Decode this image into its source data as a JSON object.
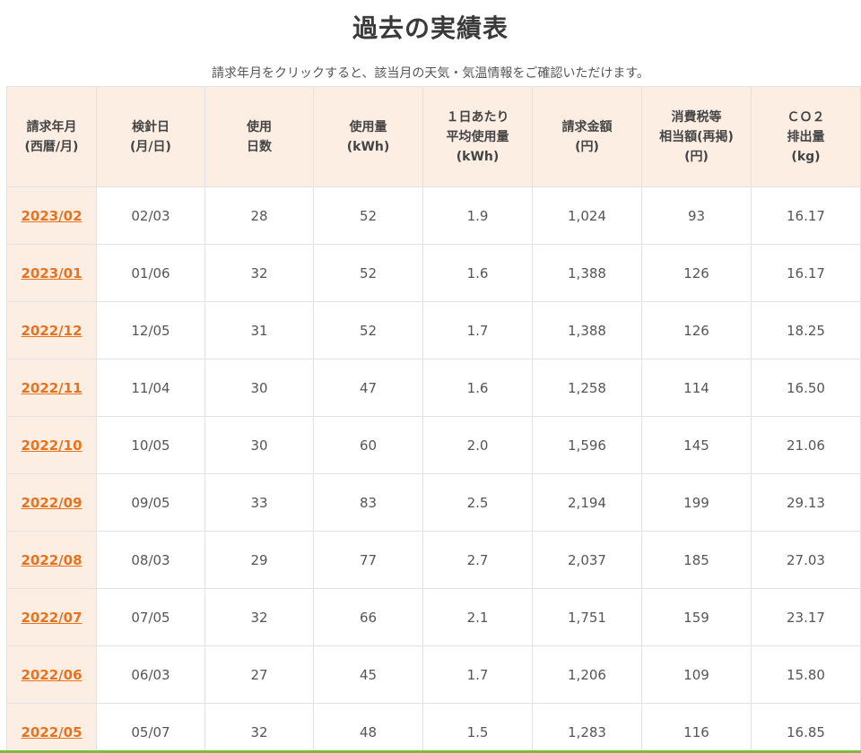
{
  "page": {
    "title": "過去の実績表",
    "subtitle": "請求年月をクリックすると、該当月の天気・気温情報をご確認いただけます。"
  },
  "table": {
    "headers": [
      {
        "lines": [
          "請求年月",
          "(西暦/月)"
        ]
      },
      {
        "lines": [
          "検針日",
          "(月/日)"
        ]
      },
      {
        "lines": [
          "使用",
          "日数"
        ]
      },
      {
        "lines": [
          "使用量",
          "(kWh)"
        ]
      },
      {
        "lines": [
          "１日あたり",
          "平均使用量",
          "(kWh)"
        ]
      },
      {
        "lines": [
          "請求金額",
          "(円)"
        ]
      },
      {
        "lines": [
          "消費税等",
          "相当額(再掲)",
          "(円)"
        ]
      },
      {
        "lines": [
          "ＣＯ２",
          "排出量",
          "(kg)"
        ]
      }
    ],
    "rows": [
      {
        "month": "2023/02",
        "reading_date": "02/03",
        "days": "28",
        "usage": "52",
        "daily_avg": "1.9",
        "amount": "1,024",
        "tax": "93",
        "co2": "16.17"
      },
      {
        "month": "2023/01",
        "reading_date": "01/06",
        "days": "32",
        "usage": "52",
        "daily_avg": "1.6",
        "amount": "1,388",
        "tax": "126",
        "co2": "16.17"
      },
      {
        "month": "2022/12",
        "reading_date": "12/05",
        "days": "31",
        "usage": "52",
        "daily_avg": "1.7",
        "amount": "1,388",
        "tax": "126",
        "co2": "18.25"
      },
      {
        "month": "2022/11",
        "reading_date": "11/04",
        "days": "30",
        "usage": "47",
        "daily_avg": "1.6",
        "amount": "1,258",
        "tax": "114",
        "co2": "16.50"
      },
      {
        "month": "2022/10",
        "reading_date": "10/05",
        "days": "30",
        "usage": "60",
        "daily_avg": "2.0",
        "amount": "1,596",
        "tax": "145",
        "co2": "21.06"
      },
      {
        "month": "2022/09",
        "reading_date": "09/05",
        "days": "33",
        "usage": "83",
        "daily_avg": "2.5",
        "amount": "2,194",
        "tax": "199",
        "co2": "29.13"
      },
      {
        "month": "2022/08",
        "reading_date": "08/03",
        "days": "29",
        "usage": "77",
        "daily_avg": "2.7",
        "amount": "2,037",
        "tax": "185",
        "co2": "27.03"
      },
      {
        "month": "2022/07",
        "reading_date": "07/05",
        "days": "32",
        "usage": "66",
        "daily_avg": "2.1",
        "amount": "1,751",
        "tax": "159",
        "co2": "23.17"
      },
      {
        "month": "2022/06",
        "reading_date": "06/03",
        "days": "27",
        "usage": "45",
        "daily_avg": "1.7",
        "amount": "1,206",
        "tax": "109",
        "co2": "15.80"
      },
      {
        "month": "2022/05",
        "reading_date": "05/07",
        "days": "32",
        "usage": "48",
        "daily_avg": "1.5",
        "amount": "1,283",
        "tax": "116",
        "co2": "16.85"
      }
    ]
  },
  "colors": {
    "accent_link": "#e8731c",
    "header_bg": "#fdeee4",
    "bottom_bar": "#7cbc3a"
  }
}
